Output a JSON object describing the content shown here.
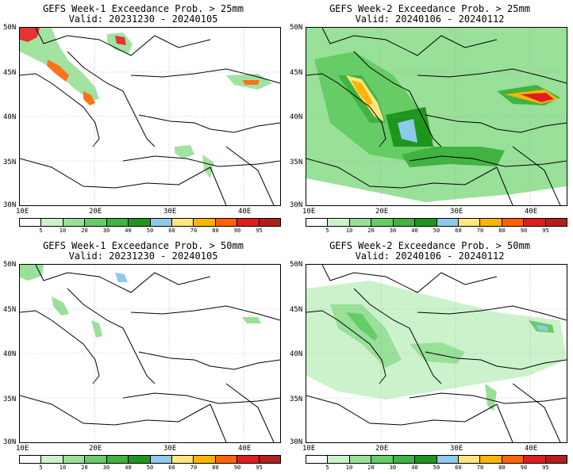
{
  "panels": [
    {
      "title": "GEFS Week-1 Exceedance Prob. > 25mm",
      "valid": "Valid: 20231230 - 20240105"
    },
    {
      "title": "GEFS Week-2 Exceedance Prob. > 25mm",
      "valid": "Valid: 20240106 - 20240112"
    },
    {
      "title": "GEFS Week-1 Exceedance Prob. > 50mm",
      "valid": "Valid: 20231230 - 20240105"
    },
    {
      "title": "GEFS Week-2 Exceedance Prob. > 50mm",
      "valid": "Valid: 20240106 - 20240112"
    }
  ],
  "axes": {
    "lat_labels": [
      "50N",
      "45N",
      "40N",
      "35N",
      "30N"
    ],
    "lon_labels": [
      "10E",
      "20E",
      "30E",
      "40E"
    ]
  },
  "colorbar": {
    "labels": [
      "5",
      "10",
      "20",
      "30",
      "40",
      "50",
      "60",
      "70",
      "80",
      "90",
      "95"
    ],
    "colors": [
      "#ffffff",
      "#ccf2cc",
      "#99e099",
      "#66cc66",
      "#40b340",
      "#1e961e",
      "#8ec8ea",
      "#ffe680",
      "#ffb400",
      "#ff6400",
      "#e01e1e",
      "#b02020"
    ]
  }
}
